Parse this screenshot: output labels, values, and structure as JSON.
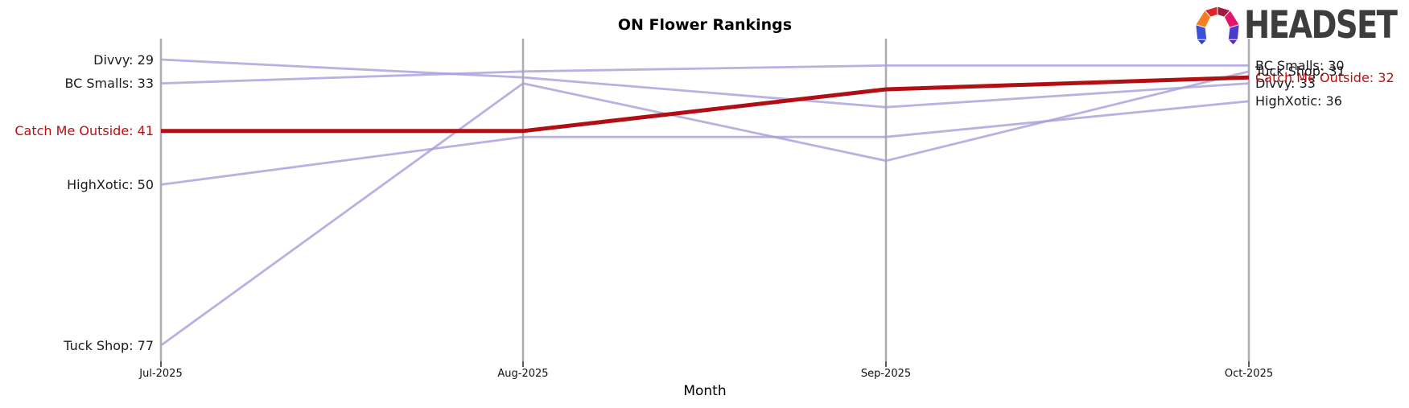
{
  "header": {
    "logo_text": "HEADSET"
  },
  "chart_data": {
    "type": "line",
    "variant": "bump-ranking-chart",
    "title": "ON Flower Rankings",
    "xlabel": "Month",
    "ylabel": "",
    "x": [
      "Jul-2025",
      "Aug-2025",
      "Sep-2025",
      "Oct-2025"
    ],
    "y_axis": "rank (lower is better, inverted: best rank at top)",
    "rank_range": [
      29,
      77
    ],
    "grid": "vertical axis line per month, no horizontal grid",
    "legend_position": "none (direct labels at line start and end)",
    "series": [
      {
        "name": "Divvy",
        "values": [
          29,
          32,
          37,
          33
        ],
        "color": "#a59fdb",
        "highlight": false
      },
      {
        "name": "BC Smalls",
        "values": [
          33,
          31,
          30,
          30
        ],
        "color": "#a59fdb",
        "highlight": false
      },
      {
        "name": "Catch Me Outside",
        "values": [
          41,
          41,
          34,
          32
        ],
        "color": "#b01014",
        "highlight": true
      },
      {
        "name": "HighXotic",
        "values": [
          50,
          42,
          42,
          36
        ],
        "color": "#a59fdb",
        "highlight": false
      },
      {
        "name": "Tuck Shop",
        "values": [
          77,
          33,
          46,
          31
        ],
        "color": "#a59fdb",
        "highlight": false
      }
    ],
    "left_labels": [
      "Divvy: 29",
      "BC Smalls: 33",
      "Catch Me Outside: 41",
      "HighXotic: 50",
      "Tuck Shop: 77"
    ],
    "right_labels": [
      "BC Smalls: 30",
      "Tuck Shop: 31",
      "Catch Me Outside: 32",
      "Divvy: 33",
      "HighXotic: 36"
    ]
  },
  "colors": {
    "highlight_red_line": "#b01014",
    "highlight_red_text": "#c00d0d",
    "series_purple": "#a59fdb",
    "axis_gray": "#adadad",
    "tick_dark": "#262626",
    "label_black": "#1a1a1a",
    "logo_text_gray": "#3d3d3d",
    "logo_facets": [
      "#3b4fd8",
      "#f57e20",
      "#e02329",
      "#9d1d3a",
      "#e1156a",
      "#4a3bc9",
      "#2f3fc0",
      "#5c2d9e"
    ]
  }
}
